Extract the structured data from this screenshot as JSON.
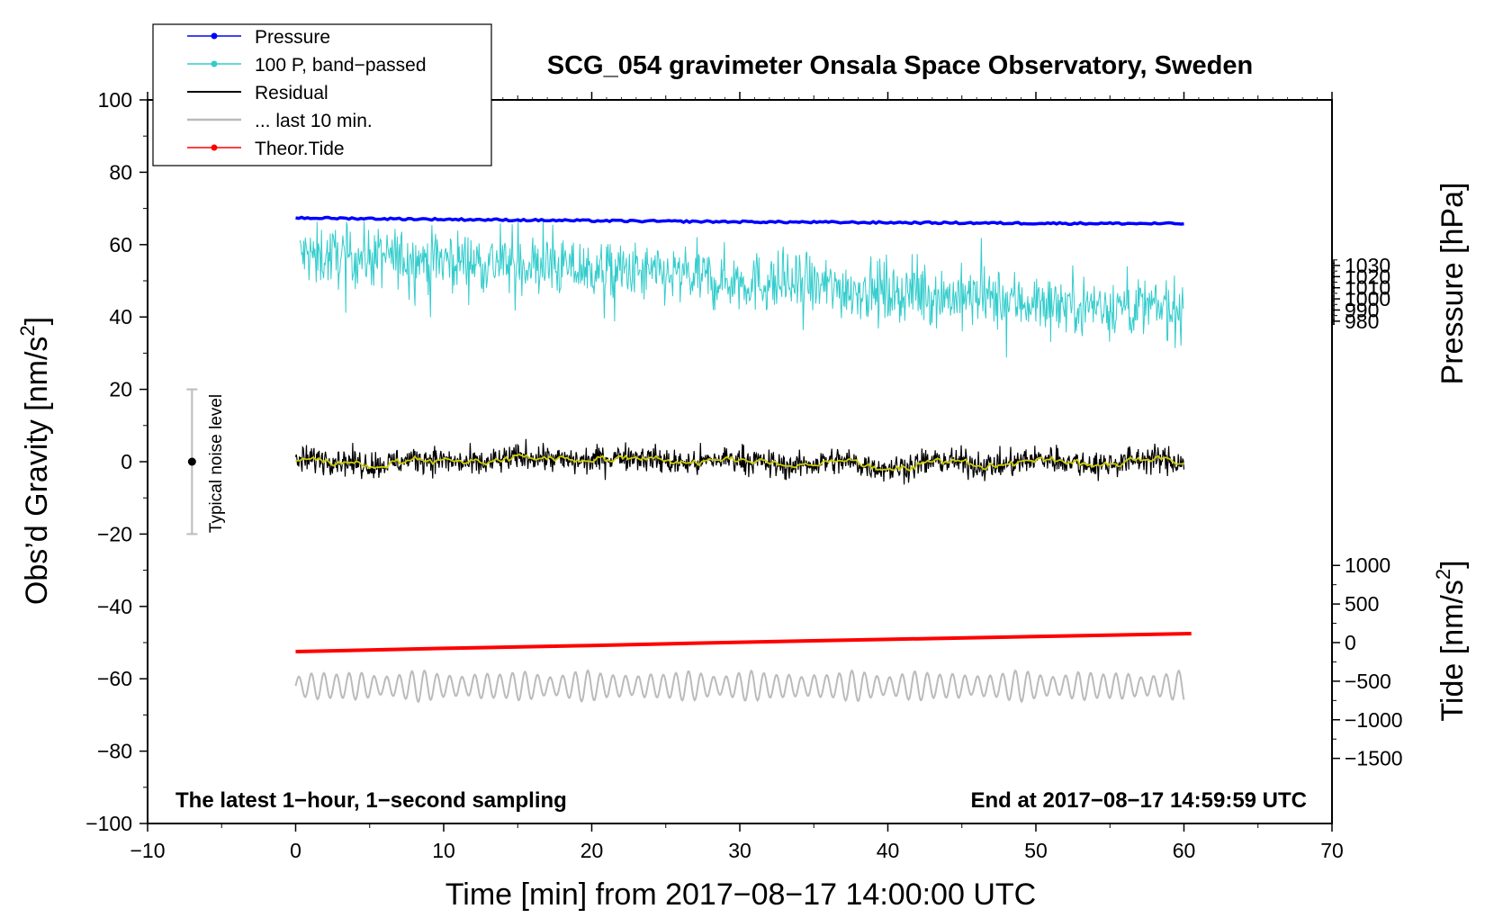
{
  "chart_data": {
    "type": "line",
    "title": "SCG_054 gravimeter Onsala Space Observatory, Sweden",
    "xlabel": "Time [min] from 2017−08−17 14:00:00 UTC",
    "ylabel_left": "Obs’d Gravity [nm/s",
    "ylabel_left_sup": "2",
    "ylabel_left_close": "]",
    "ylabel_right_pressure": "Pressure [hPa]",
    "ylabel_right_tide": "Tide [nm/s",
    "ylabel_right_tide_sup": "2",
    "ylabel_right_tide_close": "]",
    "xlim": [
      -10,
      70
    ],
    "ylim_left": [
      -100,
      100
    ],
    "pressure_axis": {
      "range_on_left_axis": [
        40,
        100
      ],
      "ticks": [
        980,
        990,
        1000,
        1010,
        1020,
        1030
      ],
      "zero_at_left": -5,
      "units_per_left_unit": 3.25
    },
    "tide_axis": {
      "zero_at_left": -50,
      "units_per_left_unit": 46.875,
      "ticks": [
        -1500,
        -1000,
        -500,
        0,
        500,
        1000
      ]
    },
    "x_ticks": [
      -10,
      0,
      10,
      20,
      30,
      40,
      50,
      60,
      70
    ],
    "x_tick_labels": [
      "−10",
      "0",
      "10",
      "20",
      "30",
      "40",
      "50",
      "60",
      "70"
    ],
    "y_ticks_left": [
      -100,
      -80,
      -60,
      -40,
      -20,
      0,
      20,
      40,
      60,
      80,
      100
    ],
    "y_tick_labels_left": [
      "−100",
      "−80",
      "−60",
      "−40",
      "−20",
      "0",
      "20",
      "40",
      "60",
      "80",
      "100"
    ],
    "y_tick_labels_pressure": [
      "980",
      "990",
      "1000",
      "1010",
      "1020",
      "1030"
    ],
    "y_tick_labels_tide": [
      "−1500",
      "−1000",
      "−500",
      "0",
      "500",
      "1000"
    ],
    "series": [
      {
        "name": "Pressure",
        "color": "#0000ff",
        "x": [
          0,
          10,
          20,
          30,
          40,
          50,
          60
        ],
        "values": [
          67.4,
          67.0,
          66.6,
          66.3,
          66.1,
          65.9,
          65.8
        ]
      },
      {
        "name": "100 P, band−passed",
        "color": "#33cccc",
        "x": [
          0,
          10,
          20,
          30,
          40,
          50,
          60
        ],
        "values": [
          57,
          56,
          53,
          50,
          47,
          44,
          42
        ]
      },
      {
        "name": "Residual",
        "color": "#000000",
        "x": [
          0,
          10,
          20,
          30,
          40,
          50,
          60
        ],
        "values": [
          0,
          0,
          1,
          0,
          -1,
          0,
          0
        ]
      },
      {
        "name": "... last 10 min.",
        "color": "#bbbbbb",
        "x": [
          0,
          10,
          20,
          30,
          40,
          50,
          60
        ],
        "values": [
          -62,
          -62,
          -62,
          -62,
          -62,
          -62,
          -62
        ]
      },
      {
        "name": "Theor.Tide",
        "color": "#ff0000",
        "x": [
          0,
          10,
          20,
          30,
          40,
          50,
          60.5
        ],
        "values": [
          -52.5,
          -51.6,
          -50.8,
          -49.9,
          -49.1,
          -48.3,
          -47.5
        ]
      }
    ],
    "smoothed_residual_color": "#cccc00",
    "noise_bar": {
      "label": "Typical noise level",
      "x": -7,
      "center": 0,
      "low": -20,
      "high": 20
    },
    "legend_location": "top-left",
    "annotation_left": "The latest 1−hour, 1−second sampling",
    "annotation_right": "End at 2017−08−17 14:59:59 UTC"
  }
}
